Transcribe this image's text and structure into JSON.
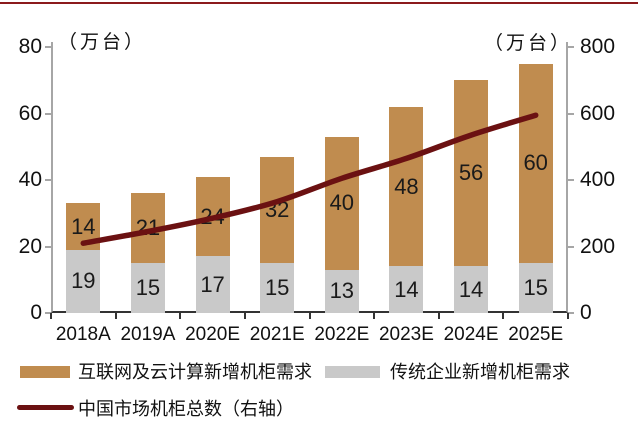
{
  "chart_data": {
    "type": "bar",
    "subtype": "stacked-bars-with-right-axis-line",
    "categories": [
      "2018A",
      "2019A",
      "2020E",
      "2021E",
      "2022E",
      "2023E",
      "2024E",
      "2025E"
    ],
    "series": [
      {
        "name": "传统企业新增机柜需求",
        "type": "bar",
        "stack": "total",
        "color": "#c9c9c9",
        "values": [
          19,
          15,
          17,
          15,
          13,
          14,
          14,
          15
        ]
      },
      {
        "name": "互联网及云计算新增机柜需求",
        "type": "bar",
        "stack": "total",
        "color": "#c08c4f",
        "values": [
          14,
          21,
          24,
          32,
          40,
          48,
          56,
          60
        ]
      },
      {
        "name": "中国市场机柜总数（右轴）",
        "type": "line",
        "axis": "right",
        "color": "#6b1112",
        "values_approx": [
          210,
          245,
          285,
          335,
          405,
          465,
          535,
          595
        ]
      }
    ],
    "left_axis": {
      "unit": "（万台）",
      "ticks": [
        0,
        20,
        40,
        60,
        80
      ],
      "min": 0,
      "max": 80
    },
    "right_axis": {
      "unit": "（万台）",
      "ticks": [
        0,
        200,
        400,
        600,
        800
      ],
      "min": 0,
      "max": 800
    },
    "grid": false,
    "legend_position": "bottom",
    "bar_labels_shown": true
  },
  "colors": {
    "top_rule": "#8b1a1c",
    "axis_spine": "#a6a6a6",
    "bottom_axis": "#333333",
    "background": "#ffffff",
    "text": "#111111"
  }
}
